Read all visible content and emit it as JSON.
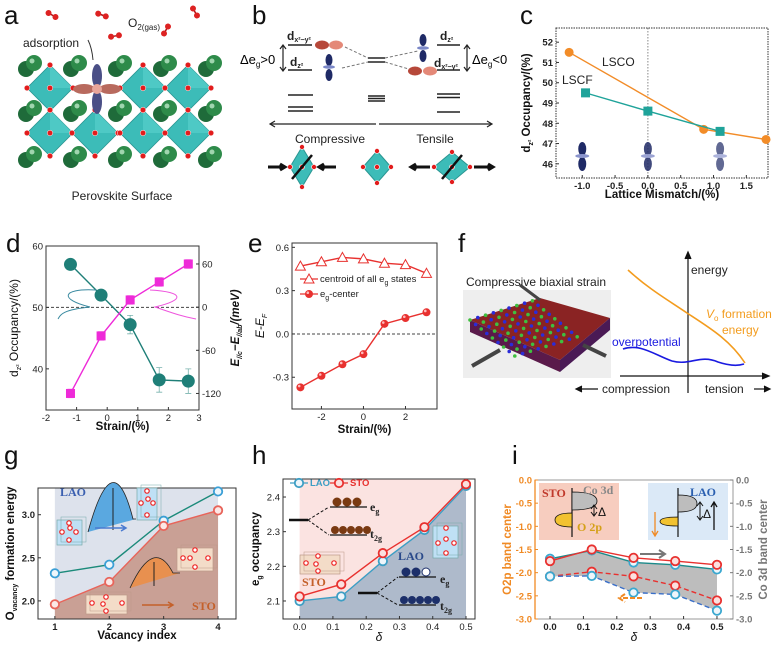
{
  "figure": {
    "panel_labels": [
      "a",
      "b",
      "c",
      "d",
      "e",
      "f",
      "g",
      "h",
      "i"
    ],
    "a": {
      "o2_label": "O",
      "o2_sub": "2(gas)",
      "adsorption": "adsorption",
      "caption": "Perovskite Surface"
    },
    "b": {
      "dx2y2": "d",
      "dx2y2_sub": "x²−y²",
      "dz2": "d",
      "dz2_sub": "z²",
      "deg_pos": [
        "Δe",
        "g",
        ">0"
      ],
      "deg_neg": [
        "Δe",
        "g",
        "<0"
      ],
      "compressive": "Compressive",
      "tensile": "Tensile"
    },
    "f": {
      "title": "Compressive biaxial strain",
      "energy": "energy",
      "vo": "V",
      "vo_sub": "o",
      "formation": " formation",
      "energy2": "energy",
      "overpotential": "overpotential",
      "compression": "compression",
      "tension": "tension",
      "colors": {
        "vo": "#f39c1e",
        "overpotential": "#1a1ae0"
      }
    }
  },
  "chart_data": [
    {
      "id": "c",
      "type": "line",
      "title": "",
      "xlabel": [
        "Lattice Mismatch/(%)"
      ],
      "ylabel": [
        "d",
        "z²",
        " Occupancy/(%)"
      ],
      "xlim": [
        -1.4,
        1.83
      ],
      "ylim": [
        45.3,
        52.7
      ],
      "xticks": [
        "-1.0",
        "-0.5",
        "0.0",
        "0.5",
        "1.0",
        "1.5"
      ],
      "yticks": [
        "46",
        "47",
        "48",
        "49",
        "50",
        "51",
        "52"
      ],
      "vline": 0,
      "series": [
        {
          "name": "LSCO",
          "color": "#f28c28",
          "marker": "circle",
          "fill": "#f28c28",
          "x": [
            -1.2,
            0.85,
            1.8
          ],
          "y": [
            51.5,
            47.7,
            47.2
          ]
        },
        {
          "name": "LSCF",
          "color": "#1fa39a",
          "marker": "square",
          "fill": "#1fa39a",
          "x": [
            -0.95,
            0,
            1.1
          ],
          "y": [
            49.5,
            48.6,
            47.6
          ]
        }
      ],
      "annotations": [
        {
          "text": "LSCO"
        },
        {
          "text": "LSCF"
        }
      ]
    },
    {
      "id": "d",
      "type": "line",
      "xlabel": [
        "Strain/(%)"
      ],
      "ylabel": [
        "d",
        "z²",
        " Occupancy/(%)"
      ],
      "y2label": [
        "E",
        "//c",
        "−E",
        "//ab",
        "/(meV)"
      ],
      "xlim": [
        -2,
        3
      ],
      "ylim": [
        33.3,
        60
      ],
      "y2lim": [
        -143,
        85
      ],
      "xticks": [
        "-2",
        "-1",
        "0",
        "1",
        "2",
        "3"
      ],
      "yticks": [
        "40",
        "50",
        "60"
      ],
      "y2ticks": [
        "-120",
        "-60",
        "0",
        "60"
      ],
      "hline": {
        "value": 50,
        "axis": "left"
      },
      "series": [
        {
          "name": "occupancy",
          "color": "#1f7f78",
          "marker": "circle",
          "fill": "#1f7f78",
          "axis": "left",
          "x": [
            -1.2,
            -0.2,
            0.75,
            1.7,
            2.65
          ],
          "y": [
            57,
            52,
            47.2,
            38.2,
            38
          ],
          "err": [
            0.5,
            0.5,
            1.5,
            2,
            2
          ]
        },
        {
          "name": "energy",
          "color": "#ee2ad8",
          "marker": "square",
          "fill": "#ee2ad8",
          "axis": "right",
          "x": [
            -1.2,
            -0.2,
            0.75,
            1.7,
            2.65
          ],
          "y": [
            -120,
            -40,
            10,
            35,
            60
          ],
          "err": [
            6,
            6,
            6,
            6,
            6
          ]
        }
      ]
    },
    {
      "id": "e",
      "type": "line",
      "xlabel": [
        "Strain/(%)"
      ],
      "ylabel": [
        "E-E",
        "F"
      ],
      "xlim": [
        -3.4,
        3.5
      ],
      "ylim": [
        -0.52,
        0.63
      ],
      "xticks": [
        "-2",
        "0",
        "2"
      ],
      "yticks": [
        "-0.3",
        "0.0",
        "0.3",
        "0.6"
      ],
      "hline": {
        "value": 0,
        "axis": "left"
      },
      "series": [
        {
          "name": "centroid of all eg states",
          "color": "#e8312f",
          "marker": "triangle",
          "fill": "none",
          "x": [
            -3,
            -2,
            -1,
            0,
            1,
            2,
            3
          ],
          "y": [
            0.47,
            0.5,
            0.53,
            0.52,
            0.49,
            0.48,
            0.42
          ]
        },
        {
          "name": "eg-center",
          "color": "#e8312f",
          "marker": "sphere",
          "fill": "#e8312f",
          "x": [
            -3,
            -2,
            -1,
            0,
            1,
            2,
            3
          ],
          "y": [
            -0.37,
            -0.29,
            -0.21,
            -0.14,
            0.07,
            0.11,
            0.15
          ]
        }
      ],
      "legend": [
        {
          "segments": [
            "centroid of all e",
            "g",
            " states"
          ],
          "series": 0
        },
        {
          "segments": [
            "e",
            "g",
            "-center"
          ],
          "series": 1
        }
      ],
      "legend_placement": "top-left"
    },
    {
      "id": "g",
      "type": "line",
      "xlabel": [
        "Vacancy index"
      ],
      "ylabel": [
        "O",
        "vacancy",
        " formation energy"
      ],
      "xlim": [
        0.69,
        4.33
      ],
      "ylim": [
        1.79,
        3.31
      ],
      "xticks": [
        "1",
        "2",
        "3",
        "4"
      ],
      "yticks": [
        "2.0",
        "2.5",
        "3.0"
      ],
      "fills": [
        {
          "type": "band",
          "x": [
            1,
            4
          ],
          "color": "#dde2ec"
        },
        {
          "type": "under",
          "series": 1,
          "color": "#c9a095"
        }
      ],
      "series": [
        {
          "name": "LAO",
          "color": "#1b8a7a",
          "marker": "ring",
          "stroke": "#3a9fd6",
          "fill": "#eef6fb",
          "x": [
            1,
            2,
            3,
            4
          ],
          "y": [
            2.32,
            2.42,
            2.93,
            3.27
          ]
        },
        {
          "name": "STO",
          "color": "#e8645a",
          "marker": "ring",
          "stroke": "#e8645a",
          "fill": "#fbe7e5",
          "x": [
            1,
            2,
            3,
            4
          ],
          "y": [
            1.96,
            2.22,
            2.87,
            3.05
          ]
        }
      ],
      "annotations": [
        {
          "text": "LAO",
          "color": "#3a5fb0"
        },
        {
          "text": "STO",
          "color": "#c4602a"
        }
      ]
    },
    {
      "id": "h",
      "type": "line",
      "xlabel": [
        "δ"
      ],
      "ylabel": [
        "e",
        "g",
        " occupancy"
      ],
      "xlim": [
        -0.05,
        0.527
      ],
      "ylim": [
        2.048,
        2.452
      ],
      "xticks": [
        "0.0",
        "0.1",
        "0.2",
        "0.3",
        "0.4",
        "0.5"
      ],
      "yticks": [
        "2.1",
        "2.2",
        "2.3",
        "2.4"
      ],
      "fills": [
        {
          "type": "band",
          "x": [
            0,
            0.5
          ],
          "color": "#fbe3e1"
        },
        {
          "type": "under",
          "series": 0,
          "color": "#aebacb"
        }
      ],
      "series": [
        {
          "name": "LAO",
          "color": "#3d9ec4",
          "marker": "ring",
          "stroke": "#3d9ec4",
          "fill": "#eef6fb",
          "x": [
            0,
            0.125,
            0.25,
            0.375,
            0.5
          ],
          "y": [
            2.1,
            2.113,
            2.215,
            2.305,
            2.432
          ]
        },
        {
          "name": "STO",
          "color": "#e8312f",
          "marker": "ring",
          "stroke": "#e8312f",
          "fill": "#fbe0df",
          "x": [
            0,
            0.125,
            0.25,
            0.375,
            0.5
          ],
          "y": [
            2.113,
            2.148,
            2.238,
            2.313,
            2.437
          ]
        }
      ],
      "legend": [
        {
          "segments": [
            "LAO"
          ],
          "series": 0
        },
        {
          "segments": [
            "STO"
          ],
          "series": 1
        }
      ],
      "legend_placement": "top-left",
      "annotations": [
        {
          "text": "e",
          "sub": "g"
        },
        {
          "text": "t",
          "sub": "2g"
        },
        {
          "text": "STO",
          "color": "#c4602a"
        },
        {
          "text": "LAO",
          "color": "#2a4a8a"
        },
        {
          "text": "e",
          "sub": "g"
        },
        {
          "text": "t",
          "sub": "2g"
        }
      ]
    },
    {
      "id": "i",
      "type": "line",
      "xlabel": [
        "δ"
      ],
      "ylabel": [
        "O2p band center"
      ],
      "y2label": [
        "Co 3d band center"
      ],
      "ycolor": "#f08a24",
      "y2color": "#777777",
      "xlim": [
        -0.045,
        0.548
      ],
      "ylim": [
        -3,
        0
      ],
      "y2lim": [
        -3,
        0
      ],
      "xticks": [
        "0.0",
        "0.1",
        "0.2",
        "0.3",
        "0.4",
        "0.5"
      ],
      "yticks": [
        "0.0",
        "-0.5",
        "-1.0",
        "-1.5",
        "-2.0",
        "-2.5",
        "-3.0"
      ],
      "y2ticks": [
        "0.0",
        "-0.5",
        "-1.0",
        "-1.5",
        "-2.0",
        "-2.5",
        "-3.0"
      ],
      "fills": [
        {
          "type": "between",
          "series": [
            0,
            3
          ],
          "color": "#bdbdbd"
        }
      ],
      "series": [
        {
          "name": "LAO Co 3d",
          "color": "#1b8a8a",
          "marker": "ring",
          "stroke": "#3aa8d0",
          "fill": "#eef6fb",
          "axis": "right",
          "x": [
            0,
            0.125,
            0.25,
            0.375,
            0.5
          ],
          "y": [
            -1.7,
            -1.52,
            -1.78,
            -1.83,
            -1.93
          ]
        },
        {
          "name": "STO Co 3d",
          "color": "#e8312f",
          "marker": "ring",
          "stroke": "#e8312f",
          "fill": "#fbe0df",
          "axis": "right",
          "x": [
            0,
            0.125,
            0.25,
            0.375,
            0.5
          ],
          "y": [
            -1.75,
            -1.5,
            -1.68,
            -1.75,
            -1.83
          ]
        },
        {
          "name": "STO O2p",
          "color": "#e8312f",
          "marker": "ring",
          "stroke": "#e8312f",
          "fill": "#fbe0df",
          "dashed": true,
          "x": [
            0,
            0.125,
            0.25,
            0.375,
            0.5
          ],
          "y": [
            -2.08,
            -1.98,
            -2.08,
            -2.28,
            -2.6
          ]
        },
        {
          "name": "LAO O2p",
          "color": "#3a6fc8",
          "marker": "ring",
          "stroke": "#3aa8d0",
          "fill": "#eef6fb",
          "dashed": true,
          "x": [
            0,
            0.125,
            0.25,
            0.375,
            0.5
          ],
          "y": [
            -2.08,
            -2.07,
            -2.43,
            -2.47,
            -2.82
          ]
        }
      ],
      "annotations": [
        {
          "text": "STO",
          "color": "#c0392b"
        },
        {
          "text": "Co 3d",
          "color": "#888888"
        },
        {
          "text": "O 2p",
          "color": "#d4a017"
        },
        {
          "text": "Δ",
          "color": "#111111"
        },
        {
          "text": "LAO",
          "color": "#2a5fb0"
        },
        {
          "text": "Δ",
          "color": "#111111"
        }
      ]
    }
  ]
}
